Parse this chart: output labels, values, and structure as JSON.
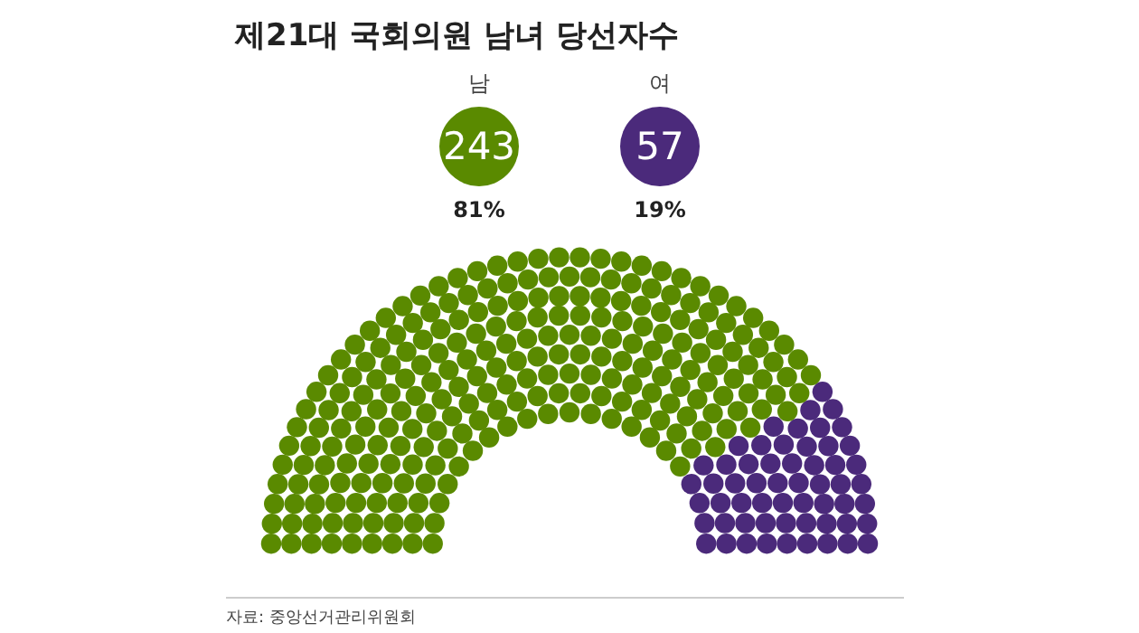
{
  "chart_data": {
    "type": "other",
    "title": "제21대 국회의원 남녀 당선자수",
    "categories": [
      "남",
      "여"
    ],
    "values": [
      243,
      57
    ],
    "colors": [
      "#5a8a00",
      "#4b2a7b"
    ],
    "data_labels": true,
    "annotations": [
      {
        "text": "81%",
        "x": "남"
      },
      {
        "text": "19%",
        "x": "여"
      },
      "자료: 중앙선거관리위원회"
    ]
  }
}
